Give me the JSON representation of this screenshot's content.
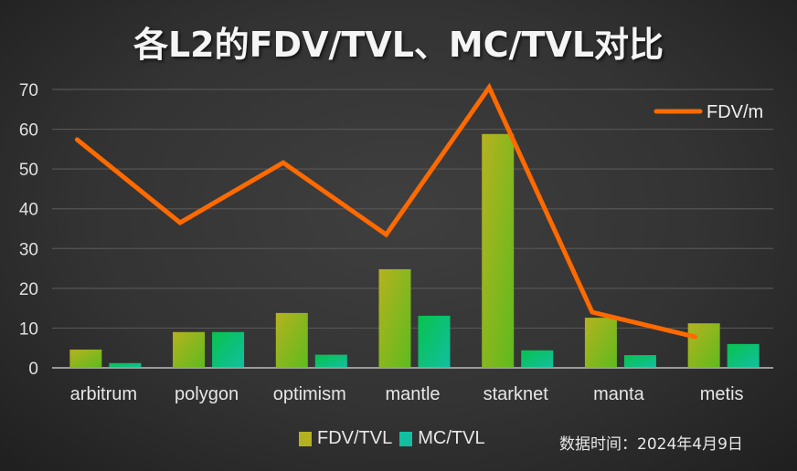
{
  "title": "各L2的FDV/TVL、MC/TVL对比",
  "date_note": "数据时间：2024年4月9日",
  "legend": {
    "line_label": "FDV/m",
    "bar_labels": [
      "FDV/TVL",
      "MC/TVL"
    ]
  },
  "colors": {
    "fdv_tvl_top": "#b5b21f",
    "fdv_tvl_bottom": "#5dbb1e",
    "mc_tvl_top": "#08c24e",
    "mc_tvl_bottom": "#12bfa0",
    "line": "#ff6a00",
    "grid": "#555555",
    "axis": "#9a9a9a"
  },
  "chart_data": {
    "type": "bar+line",
    "title": "各L2的FDV/TVL、MC/TVL对比",
    "xlabel": "",
    "ylabel": "",
    "categories": [
      "arbitrum",
      "polygon",
      "optimism",
      "mantle",
      "starknet",
      "manta",
      "metis"
    ],
    "series": [
      {
        "name": "FDV/TVL",
        "type": "bar",
        "values": [
          4.6,
          9.0,
          13.8,
          24.8,
          58.8,
          12.6,
          11.2
        ]
      },
      {
        "name": "MC/TVL",
        "type": "bar",
        "values": [
          1.2,
          9.0,
          3.3,
          13.1,
          4.4,
          3.2,
          6.0
        ]
      },
      {
        "name": "FDV/m",
        "type": "line",
        "values": [
          57.4,
          36.5,
          51.6,
          33.5,
          70.5,
          14.0,
          7.8
        ]
      }
    ],
    "yticks": [
      0,
      10,
      20,
      30,
      40,
      50,
      60,
      70
    ],
    "ylim": [
      0,
      70
    ],
    "grid": true,
    "legend_position": "top-right (line), bottom-center (bars)",
    "annotations": [
      "数据时间：2024年4月9日"
    ]
  }
}
